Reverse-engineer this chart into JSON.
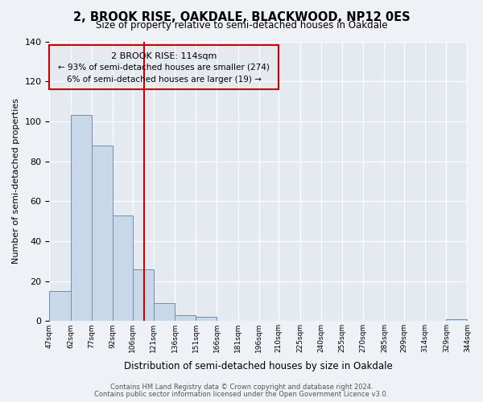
{
  "title": "2, BROOK RISE, OAKDALE, BLACKWOOD, NP12 0ES",
  "subtitle": "Size of property relative to semi-detached houses in Oakdale",
  "xlabel": "Distribution of semi-detached houses by size in Oakdale",
  "ylabel": "Number of semi-detached properties",
  "bar_edges": [
    47,
    62,
    77,
    92,
    106,
    121,
    136,
    151,
    166,
    181,
    196,
    210,
    225,
    240,
    255,
    270,
    285,
    299,
    314,
    329,
    344
  ],
  "bar_heights": [
    15,
    103,
    88,
    53,
    26,
    9,
    3,
    2,
    0,
    0,
    0,
    0,
    0,
    0,
    0,
    0,
    0,
    0,
    0,
    1
  ],
  "bar_color": "#c8d8e8",
  "bar_edge_color": "#7090b0",
  "red_line_x": 114,
  "annotation_title": "2 BROOK RISE: 114sqm",
  "annotation_line1": "← 93% of semi-detached houses are smaller (274)",
  "annotation_line2": "6% of semi-detached houses are larger (19) →",
  "ylim": [
    0,
    140
  ],
  "yticks": [
    0,
    20,
    40,
    60,
    80,
    100,
    120,
    140
  ],
  "tick_labels": [
    "47sqm",
    "62sqm",
    "77sqm",
    "92sqm",
    "106sqm",
    "121sqm",
    "136sqm",
    "151sqm",
    "166sqm",
    "181sqm",
    "196sqm",
    "210sqm",
    "225sqm",
    "240sqm",
    "255sqm",
    "270sqm",
    "285sqm",
    "299sqm",
    "314sqm",
    "329sqm",
    "344sqm"
  ],
  "footer_line1": "Contains HM Land Registry data © Crown copyright and database right 2024.",
  "footer_line2": "Contains public sector information licensed under the Open Government Licence v3.0.",
  "bg_color": "#eef2f6",
  "plot_bg_color": "#e4eaf0",
  "grid_color": "#ffffff",
  "annotation_box_edge": "#cc0000",
  "red_line_color": "#cc0000"
}
